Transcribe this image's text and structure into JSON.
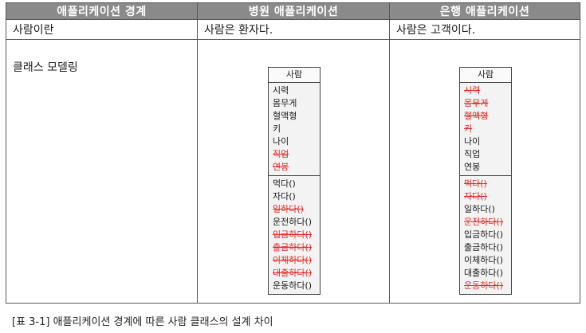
{
  "header": {
    "col1": "애플리케이션 경계",
    "col2": "병원 애플리케이션",
    "col3": "은행 애플리케이션"
  },
  "row1": {
    "col1": "사람이란",
    "col2": "사람은 환자다.",
    "col3": "사람은 고객이다."
  },
  "row2_label": "클래스 모델링",
  "hospital_class": {
    "name": "사람",
    "attributes": [
      {
        "text": "시력",
        "struck": false
      },
      {
        "text": "몸무게",
        "struck": false
      },
      {
        "text": "혈액형",
        "struck": false
      },
      {
        "text": "키",
        "struck": false
      },
      {
        "text": "나이",
        "struck": false
      },
      {
        "text": "직업",
        "struck": true
      },
      {
        "text": "연봉",
        "struck": true
      }
    ],
    "methods": [
      {
        "text": "먹다()",
        "struck": false
      },
      {
        "text": "자다()",
        "struck": false
      },
      {
        "text": "일하다()",
        "struck": true
      },
      {
        "text": "운전하다()",
        "struck": false
      },
      {
        "text": "입금하다()",
        "struck": true
      },
      {
        "text": "출금하다()",
        "struck": true
      },
      {
        "text": "이체하다()",
        "struck": true
      },
      {
        "text": "대출하다()",
        "struck": true
      },
      {
        "text": "운동하다()",
        "struck": false
      }
    ]
  },
  "bank_class": {
    "name": "사람",
    "attributes": [
      {
        "text": "시력",
        "struck": true
      },
      {
        "text": "몸무게",
        "struck": true
      },
      {
        "text": "혈액형",
        "struck": true
      },
      {
        "text": "키",
        "struck": true
      },
      {
        "text": "나이",
        "struck": false
      },
      {
        "text": "직업",
        "struck": false
      },
      {
        "text": "연봉",
        "struck": false
      }
    ],
    "methods": [
      {
        "text": "먹다()",
        "struck": true
      },
      {
        "text": "자다()",
        "struck": true
      },
      {
        "text": "일하다()",
        "struck": false
      },
      {
        "text": "운전하다()",
        "struck": true
      },
      {
        "text": "입금하다()",
        "struck": false
      },
      {
        "text": "출금하다()",
        "struck": false
      },
      {
        "text": "이체하다()",
        "struck": false
      },
      {
        "text": "대출하다()",
        "struck": false
      },
      {
        "text": "운동하다()",
        "struck": true
      }
    ]
  },
  "caption": "[표 3-1] 애플리케이션 경계에 따른 사람 클래스의 설계 차이"
}
